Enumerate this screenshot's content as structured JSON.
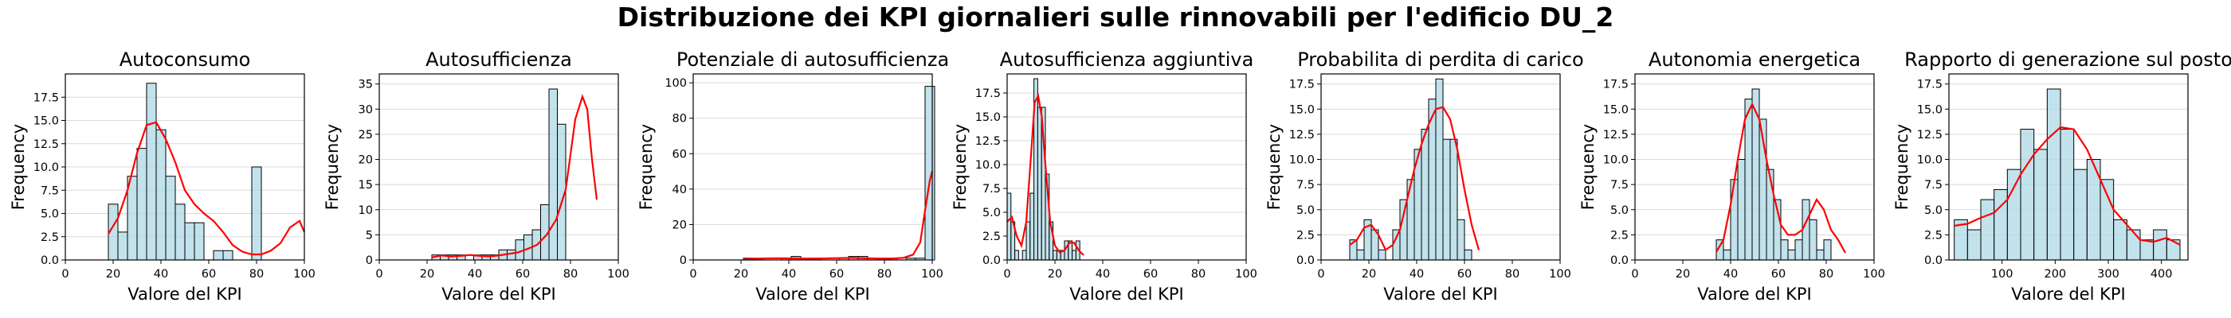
{
  "figure_title": "Distribuzione dei KPI giornalieri sulle rinnovabili per l'edificio DU_2",
  "colors": {
    "bar_fill": "#add8e6",
    "bar_edge": "#000000",
    "kde": "#ff0000",
    "grid": "#d9d9d9"
  },
  "chart_data": [
    {
      "type": "bar",
      "title": "Autoconsumo",
      "xlabel": "Valore del KPI",
      "ylabel": "Frequency",
      "xlim": [
        0,
        100
      ],
      "ylim": [
        0,
        20
      ],
      "xticks": [
        "0",
        "20",
        "40",
        "60",
        "80",
        "100"
      ],
      "yticks": [
        "0.0",
        "2.5",
        "5.0",
        "7.5",
        "10.0",
        "12.5",
        "15.0",
        "17.5"
      ],
      "bin_start": 18,
      "bin_width": 4,
      "values": [
        6,
        3,
        9,
        12,
        19,
        14,
        9,
        6,
        4,
        4,
        0,
        1,
        1,
        0,
        0,
        10
      ],
      "kde_x": [
        18,
        22,
        26,
        30,
        34,
        38,
        42,
        46,
        50,
        54,
        58,
        62,
        66,
        70,
        74,
        78,
        82,
        86,
        90,
        94,
        98,
        100
      ],
      "kde_y": [
        2.8,
        4.5,
        7.5,
        11.5,
        14.5,
        14.8,
        13,
        10.5,
        7.5,
        6,
        5,
        4.2,
        3,
        1.6,
        0.9,
        0.6,
        0.6,
        1,
        1.8,
        3.5,
        4.2,
        3
      ]
    },
    {
      "type": "bar",
      "title": "Autosufficienza",
      "xlabel": "Valore del KPI",
      "ylabel": "Frequency",
      "xlim": [
        0,
        100
      ],
      "ylim": [
        0,
        37
      ],
      "xticks": [
        "0",
        "20",
        "40",
        "60",
        "80",
        "100"
      ],
      "yticks": [
        "0",
        "5",
        "10",
        "15",
        "20",
        "25",
        "30",
        "35"
      ],
      "bin_start": 22,
      "bin_width": 3.5,
      "values": [
        1,
        1,
        1,
        1,
        0,
        1,
        1,
        1,
        2,
        2,
        4,
        5,
        6,
        11,
        34,
        27
      ],
      "kde_x": [
        22,
        26,
        30,
        34,
        38,
        42,
        46,
        50,
        54,
        58,
        62,
        66,
        70,
        74,
        78,
        82,
        85,
        87,
        89,
        91
      ],
      "kde_y": [
        0.5,
        0.9,
        0.7,
        0.8,
        1,
        0.8,
        0.7,
        0.9,
        1.2,
        1.5,
        2.2,
        3,
        5,
        8,
        14,
        28,
        32.5,
        30,
        20,
        12
      ]
    },
    {
      "type": "bar",
      "title": "Potenziale di autosufficienza",
      "xlabel": "Valore del KPI",
      "ylabel": "Frequency",
      "xlim": [
        0,
        100
      ],
      "ylim": [
        0,
        105
      ],
      "xticks": [
        "0",
        "20",
        "40",
        "60",
        "80",
        "100"
      ],
      "yticks": [
        "0",
        "20",
        "40",
        "60",
        "80",
        "100"
      ],
      "bin_start": 21,
      "bin_width": 4,
      "values": [
        1,
        1,
        0,
        0,
        1,
        2,
        1,
        1,
        0,
        0,
        1,
        2,
        2,
        0,
        1,
        1,
        0,
        1,
        1,
        98
      ],
      "kde_x": [
        21,
        28,
        35,
        42,
        50,
        58,
        66,
        74,
        82,
        88,
        92,
        95,
        97,
        99,
        100
      ],
      "kde_y": [
        0.3,
        0.8,
        1,
        0.9,
        0.7,
        1,
        1.2,
        0.9,
        0.7,
        1.2,
        3,
        10,
        28,
        45,
        50
      ]
    },
    {
      "type": "bar",
      "title": "Autosufficienza aggiuntiva",
      "xlabel": "Valore del KPI",
      "ylabel": "Frequency",
      "xlim": [
        0,
        100
      ],
      "ylim": [
        0,
        19.5
      ],
      "xticks": [
        "0",
        "20",
        "40",
        "60",
        "80",
        "100"
      ],
      "yticks": [
        "0.0",
        "2.5",
        "5.0",
        "7.5",
        "10.0",
        "12.5",
        "15.0",
        "17.5"
      ],
      "bin_start": 0,
      "bin_width": 1.6,
      "values": [
        7,
        4,
        1,
        0,
        1,
        4,
        7,
        19,
        16,
        16,
        9,
        4,
        1,
        1,
        1,
        2,
        2,
        1,
        2,
        0
      ],
      "kde_x": [
        0,
        2,
        4,
        6,
        8,
        10,
        11.5,
        13,
        14.5,
        16,
        18,
        20,
        22,
        24,
        26,
        28,
        30,
        32
      ],
      "kde_y": [
        4,
        4.5,
        2.5,
        1.5,
        4,
        11,
        16.5,
        17.2,
        15,
        10,
        4,
        1.5,
        0.8,
        1,
        1.8,
        1.8,
        1,
        0.5
      ]
    },
    {
      "type": "bar",
      "title": "Probabilita di perdita di carico",
      "xlabel": "Valore del KPI",
      "ylabel": "Frequency",
      "xlim": [
        0,
        100
      ],
      "ylim": [
        0,
        18.5
      ],
      "xticks": [
        "0",
        "20",
        "40",
        "60",
        "80",
        "100"
      ],
      "yticks": [
        "0.0",
        "2.5",
        "5.0",
        "7.5",
        "10.0",
        "12.5",
        "15.0",
        "17.5"
      ],
      "bin_start": 12,
      "bin_width": 3,
      "values": [
        2,
        1,
        4,
        3,
        1,
        0,
        3,
        6,
        8,
        11,
        13,
        16,
        18,
        12,
        12,
        4,
        1
      ],
      "kde_x": [
        12,
        15,
        18,
        21,
        24,
        27,
        30,
        33,
        36,
        39,
        42,
        45,
        48,
        51,
        54,
        57,
        60,
        63,
        66
      ],
      "kde_y": [
        1.5,
        2,
        3.2,
        3.5,
        2.5,
        1,
        1.5,
        3,
        6,
        9,
        11.5,
        13.5,
        15,
        15.2,
        14,
        11,
        7,
        3.5,
        1
      ]
    },
    {
      "type": "bar",
      "title": "Autonomia energetica",
      "xlabel": "Valore del KPI",
      "ylabel": "Frequency",
      "xlim": [
        0,
        100
      ],
      "ylim": [
        0,
        18.5
      ],
      "xticks": [
        "0",
        "20",
        "40",
        "60",
        "80",
        "100"
      ],
      "yticks": [
        "0.0",
        "2.5",
        "5.0",
        "7.5",
        "10.0",
        "12.5",
        "15.0",
        "17.5"
      ],
      "bin_start": 34,
      "bin_width": 3,
      "values": [
        2,
        1,
        8,
        10,
        16,
        17,
        14,
        9,
        6,
        2,
        1,
        2,
        6,
        4,
        1,
        2
      ],
      "kde_x": [
        34,
        37,
        40,
        43,
        46,
        49,
        52,
        55,
        58,
        61,
        64,
        67,
        70,
        73,
        76,
        79,
        82,
        85,
        88
      ],
      "kde_y": [
        0.8,
        2,
        5.5,
        10,
        14,
        15.5,
        14,
        10,
        6.5,
        3.5,
        2.5,
        2.5,
        3,
        4.5,
        6,
        5,
        3,
        2,
        0.7
      ]
    },
    {
      "type": "bar",
      "title": "Rapporto di generazione sul posto",
      "xlabel": "Valore del KPI",
      "ylabel": "Frequency",
      "xlim": [
        0,
        450
      ],
      "ylim": [
        0,
        18.5
      ],
      "xticks": [
        "100",
        "200",
        "300",
        "400"
      ],
      "xtick_values": [
        100,
        200,
        300,
        400
      ],
      "yticks": [
        "0.0",
        "2.5",
        "5.0",
        "7.5",
        "10.0",
        "12.5",
        "15.0",
        "17.5"
      ],
      "bin_start": 10,
      "bin_width": 25,
      "values": [
        4,
        3,
        6,
        7,
        9,
        13,
        11,
        17,
        13,
        9,
        10,
        8,
        4,
        3,
        2,
        3,
        2
      ],
      "kde_x": [
        10,
        35,
        60,
        85,
        110,
        135,
        160,
        185,
        210,
        235,
        260,
        285,
        310,
        335,
        360,
        385,
        410,
        435
      ],
      "kde_y": [
        3.4,
        3.6,
        4.2,
        4.7,
        6,
        8.5,
        10.5,
        12,
        13.2,
        13,
        11,
        8,
        5,
        3.5,
        2,
        1.8,
        2.2,
        1.5
      ]
    }
  ]
}
